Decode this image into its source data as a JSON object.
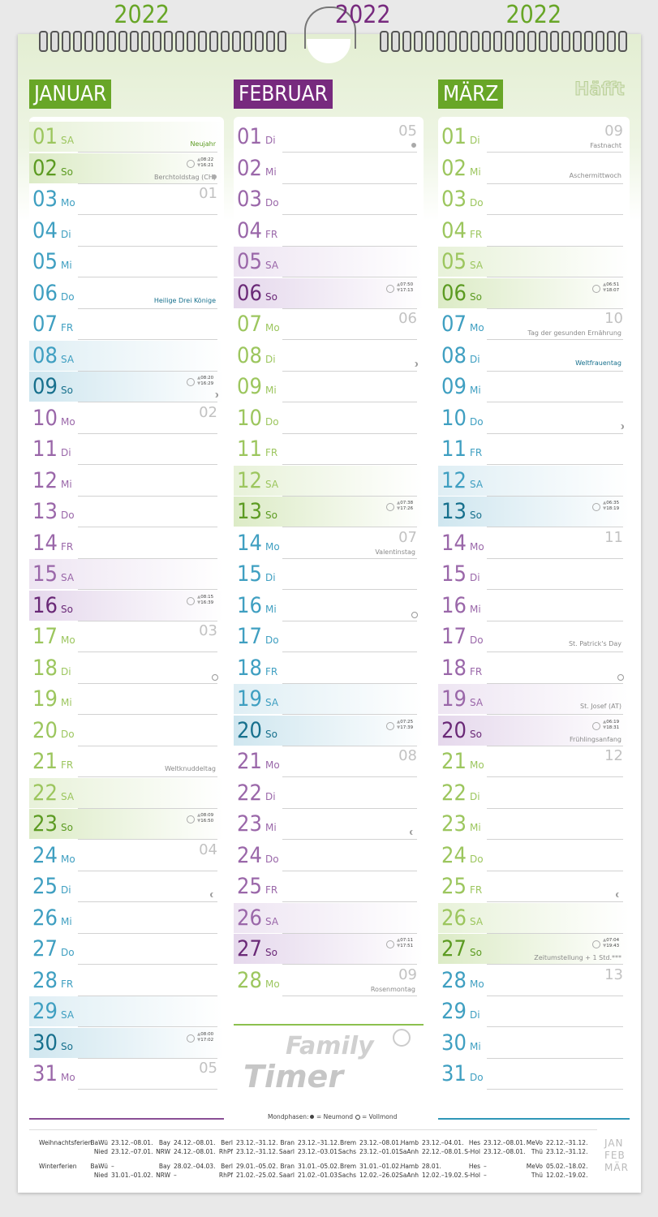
{
  "brand": "Häfft",
  "logo": {
    "line1": "Family",
    "line2": "Timer"
  },
  "palette": {
    "green": {
      "main": "#9cc65e",
      "dark": "#5c9b22",
      "tint": "#dcebc6"
    },
    "blue": {
      "main": "#3f9fc1",
      "dark": "#17708d",
      "tint": "#cfe6ef"
    },
    "purple": {
      "main": "#9a67a9",
      "dark": "#6a2977",
      "tint": "#e5d8ec"
    }
  },
  "months": [
    {
      "name": "JANUAR",
      "year": "2022",
      "color": "#68a627",
      "line_color": "#8a4f96",
      "week_colors": [
        "green",
        "blue",
        "purple",
        "green",
        "blue",
        "purple"
      ],
      "days": [
        {
          "d": "01",
          "wd": "SA",
          "note": "Neujahr",
          "holiday": true
        },
        {
          "d": "02",
          "wd": "So",
          "sun": [
            "08:22",
            "16:21"
          ],
          "note": "Berchtoldstag (CH)",
          "moon": "new"
        },
        {
          "d": "03",
          "wd": "Mo",
          "week": "01"
        },
        {
          "d": "04",
          "wd": "Di"
        },
        {
          "d": "05",
          "wd": "Mi"
        },
        {
          "d": "06",
          "wd": "Do",
          "note": "Heilige Drei Könige",
          "holiday": true
        },
        {
          "d": "07",
          "wd": "FR"
        },
        {
          "d": "08",
          "wd": "SA"
        },
        {
          "d": "09",
          "wd": "So",
          "sun": [
            "08:20",
            "16:29"
          ],
          "moon": "first"
        },
        {
          "d": "10",
          "wd": "Mo",
          "week": "02"
        },
        {
          "d": "11",
          "wd": "Di"
        },
        {
          "d": "12",
          "wd": "Mi"
        },
        {
          "d": "13",
          "wd": "Do"
        },
        {
          "d": "14",
          "wd": "FR"
        },
        {
          "d": "15",
          "wd": "SA"
        },
        {
          "d": "16",
          "wd": "So",
          "sun": [
            "08:15",
            "16:39"
          ]
        },
        {
          "d": "17",
          "wd": "Mo",
          "week": "03"
        },
        {
          "d": "18",
          "wd": "Di",
          "moon": "full"
        },
        {
          "d": "19",
          "wd": "Mi"
        },
        {
          "d": "20",
          "wd": "Do"
        },
        {
          "d": "21",
          "wd": "FR",
          "note": "Weltknuddeltag"
        },
        {
          "d": "22",
          "wd": "SA"
        },
        {
          "d": "23",
          "wd": "So",
          "sun": [
            "08:09",
            "16:50"
          ]
        },
        {
          "d": "24",
          "wd": "Mo",
          "week": "04"
        },
        {
          "d": "25",
          "wd": "Di",
          "moon": "last"
        },
        {
          "d": "26",
          "wd": "Mi"
        },
        {
          "d": "27",
          "wd": "Do"
        },
        {
          "d": "28",
          "wd": "FR"
        },
        {
          "d": "29",
          "wd": "SA"
        },
        {
          "d": "30",
          "wd": "So",
          "sun": [
            "08:00",
            "17:02"
          ]
        },
        {
          "d": "31",
          "wd": "Mo",
          "week": "05"
        }
      ]
    },
    {
      "name": "FEBRUAR",
      "year": "2022",
      "color": "#772a7e",
      "line_color": "#8cc04e",
      "week_colors": [
        "purple",
        "green",
        "blue",
        "purple",
        "green"
      ],
      "days": [
        {
          "d": "01",
          "wd": "Di",
          "week": "05",
          "moon": "new"
        },
        {
          "d": "02",
          "wd": "Mi"
        },
        {
          "d": "03",
          "wd": "Do"
        },
        {
          "d": "04",
          "wd": "FR"
        },
        {
          "d": "05",
          "wd": "SA"
        },
        {
          "d": "06",
          "wd": "So",
          "sun": [
            "07:50",
            "17:13"
          ]
        },
        {
          "d": "07",
          "wd": "Mo",
          "week": "06"
        },
        {
          "d": "08",
          "wd": "Di",
          "moon": "first"
        },
        {
          "d": "09",
          "wd": "Mi"
        },
        {
          "d": "10",
          "wd": "Do"
        },
        {
          "d": "11",
          "wd": "FR"
        },
        {
          "d": "12",
          "wd": "SA"
        },
        {
          "d": "13",
          "wd": "So",
          "sun": [
            "07:38",
            "17:26"
          ]
        },
        {
          "d": "14",
          "wd": "Mo",
          "week": "07",
          "note": "Valentinstag"
        },
        {
          "d": "15",
          "wd": "Di"
        },
        {
          "d": "16",
          "wd": "Mi",
          "moon": "full"
        },
        {
          "d": "17",
          "wd": "Do"
        },
        {
          "d": "18",
          "wd": "FR"
        },
        {
          "d": "19",
          "wd": "SA"
        },
        {
          "d": "20",
          "wd": "So",
          "sun": [
            "07:25",
            "17:39"
          ]
        },
        {
          "d": "21",
          "wd": "Mo",
          "week": "08"
        },
        {
          "d": "22",
          "wd": "Di"
        },
        {
          "d": "23",
          "wd": "Mi",
          "moon": "last"
        },
        {
          "d": "24",
          "wd": "Do"
        },
        {
          "d": "25",
          "wd": "FR"
        },
        {
          "d": "26",
          "wd": "SA"
        },
        {
          "d": "27",
          "wd": "So",
          "sun": [
            "07:11",
            "17:51"
          ]
        },
        {
          "d": "28",
          "wd": "Mo",
          "week": "09",
          "note": "Rosenmontag"
        }
      ]
    },
    {
      "name": "MÄRZ",
      "year": "2022",
      "color": "#68a627",
      "line_color": "#2f97b8",
      "week_colors": [
        "green",
        "blue",
        "purple",
        "green",
        "blue"
      ],
      "days": [
        {
          "d": "01",
          "wd": "Di",
          "week": "09",
          "note": "Fastnacht"
        },
        {
          "d": "02",
          "wd": "Mi",
          "note": "Aschermittwoch"
        },
        {
          "d": "03",
          "wd": "Do"
        },
        {
          "d": "04",
          "wd": "FR"
        },
        {
          "d": "05",
          "wd": "SA"
        },
        {
          "d": "06",
          "wd": "So",
          "sun": [
            "06:51",
            "18:07"
          ]
        },
        {
          "d": "07",
          "wd": "Mo",
          "week": "10",
          "note": "Tag der gesunden Ernährung"
        },
        {
          "d": "08",
          "wd": "Di",
          "note": "Weltfrauentag",
          "holiday": true
        },
        {
          "d": "09",
          "wd": "Mi"
        },
        {
          "d": "10",
          "wd": "Do",
          "moon": "first"
        },
        {
          "d": "11",
          "wd": "FR"
        },
        {
          "d": "12",
          "wd": "SA"
        },
        {
          "d": "13",
          "wd": "So",
          "sun": [
            "06:35",
            "18:19"
          ]
        },
        {
          "d": "14",
          "wd": "Mo",
          "week": "11"
        },
        {
          "d": "15",
          "wd": "Di"
        },
        {
          "d": "16",
          "wd": "Mi"
        },
        {
          "d": "17",
          "wd": "Do",
          "note": "St. Patrick's Day"
        },
        {
          "d": "18",
          "wd": "FR",
          "moon": "full"
        },
        {
          "d": "19",
          "wd": "SA",
          "note": "St. Josef (AT)"
        },
        {
          "d": "20",
          "wd": "So",
          "sun": [
            "06:19",
            "18:31"
          ],
          "note": "Frühlingsanfang"
        },
        {
          "d": "21",
          "wd": "Mo",
          "week": "12"
        },
        {
          "d": "22",
          "wd": "Di"
        },
        {
          "d": "23",
          "wd": "Mi"
        },
        {
          "d": "24",
          "wd": "Do"
        },
        {
          "d": "25",
          "wd": "FR",
          "moon": "last"
        },
        {
          "d": "26",
          "wd": "SA"
        },
        {
          "d": "27",
          "wd": "So",
          "sun": [
            "07:04",
            "19:43"
          ],
          "note": "Zeitumstellung + 1 Std.***"
        },
        {
          "d": "28",
          "wd": "Mo",
          "week": "13"
        },
        {
          "d": "29",
          "wd": "Di"
        },
        {
          "d": "30",
          "wd": "Mi"
        },
        {
          "d": "31",
          "wd": "Do"
        }
      ]
    }
  ],
  "moon_legend": {
    "title": "Mondphasen:",
    "new": "= Neumond",
    "full": "= Vollmond"
  },
  "school_holidays": [
    {
      "label": "Weihnachtsferien",
      "entries": [
        {
          "state": "BaWü",
          "dates": "23.12.–08.01."
        },
        {
          "state": "Bay",
          "dates": "24.12.–08.01."
        },
        {
          "state": "Berl",
          "dates": "23.12.–31.12."
        },
        {
          "state": "Bran",
          "dates": "23.12.–31.12."
        },
        {
          "state": "Brem",
          "dates": "23.12.–08.01."
        },
        {
          "state": "Hamb",
          "dates": "23.12.–04.01."
        },
        {
          "state": "Hes",
          "dates": "23.12.–08.01."
        },
        {
          "state": "MeVo",
          "dates": "22.12.–31.12."
        }
      ]
    },
    {
      "entries": [
        {
          "state": "Nied",
          "dates": "23.12.–07.01."
        },
        {
          "state": "NRW",
          "dates": "24.12.–08.01."
        },
        {
          "state": "RhPf",
          "dates": "23.12.–31.12."
        },
        {
          "state": "Saarl",
          "dates": "23.12.–03.01."
        },
        {
          "state": "Sachs",
          "dates": "23.12.–01.01."
        },
        {
          "state": "SaAnh",
          "dates": "22.12.–08.01."
        },
        {
          "state": "S-Hol",
          "dates": "23.12.–08.01."
        },
        {
          "state": "Thü",
          "dates": "23.12.–31.12."
        }
      ]
    },
    {
      "label": "Winterferien",
      "entries": [
        {
          "state": "BaWü",
          "dates": "–"
        },
        {
          "state": "Bay",
          "dates": "28.02.–04.03."
        },
        {
          "state": "Berl",
          "dates": "29.01.–05.02."
        },
        {
          "state": "Bran",
          "dates": "31.01.–05.02."
        },
        {
          "state": "Brem",
          "dates": "31.01.–01.02."
        },
        {
          "state": "Hamb",
          "dates": "28.01."
        },
        {
          "state": "Hes",
          "dates": "–"
        },
        {
          "state": "MeVo",
          "dates": "05.02.–18.02."
        }
      ]
    },
    {
      "entries": [
        {
          "state": "Nied",
          "dates": "31.01.–01.02."
        },
        {
          "state": "NRW",
          "dates": "–"
        },
        {
          "state": "RhPf",
          "dates": "21.02.–25.02."
        },
        {
          "state": "Saarl",
          "dates": "21.02.–01.03."
        },
        {
          "state": "Sachs",
          "dates": "12.02.–26.02."
        },
        {
          "state": "SaAnh",
          "dates": "12.02.–19.02."
        },
        {
          "state": "S-Hol",
          "dates": "–"
        },
        {
          "state": "Thü",
          "dates": "12.02.–19.02."
        }
      ]
    }
  ],
  "quarter": [
    "JAN",
    "FEB",
    "MÄR"
  ]
}
